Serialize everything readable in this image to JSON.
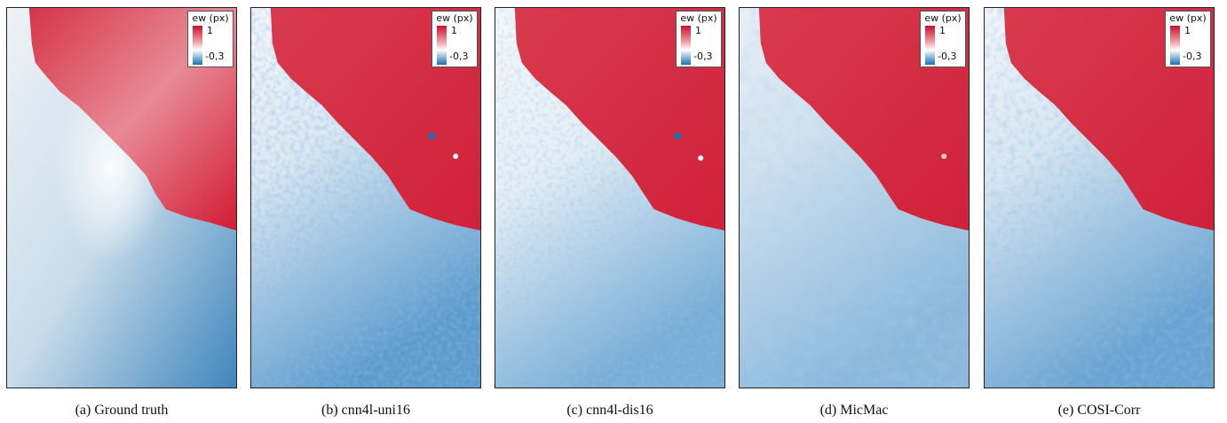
{
  "panels": [
    {
      "caption": "(a) Ground truth",
      "legend": {
        "title": "ew (px)",
        "max": "1",
        "min": "-0,3"
      }
    },
    {
      "caption": "(b) cnn4l-uni16",
      "legend": {
        "title": "ew (px)",
        "max": "1",
        "min": "-0,3"
      }
    },
    {
      "caption": "(c) cnn4l-dis16",
      "legend": {
        "title": "ew (px)",
        "max": "1",
        "min": "-0,3"
      }
    },
    {
      "caption": "(d) MicMac",
      "legend": {
        "title": "ew (px)",
        "max": "1",
        "min": "-0,3"
      }
    },
    {
      "caption": "(e) COSI-Corr",
      "legend": {
        "title": "ew (px)",
        "max": "1",
        "min": "-0,3"
      }
    }
  ],
  "colors": {
    "positive": "#c8102e",
    "zero": "#ffffff",
    "negative": "#1f6fb0"
  }
}
